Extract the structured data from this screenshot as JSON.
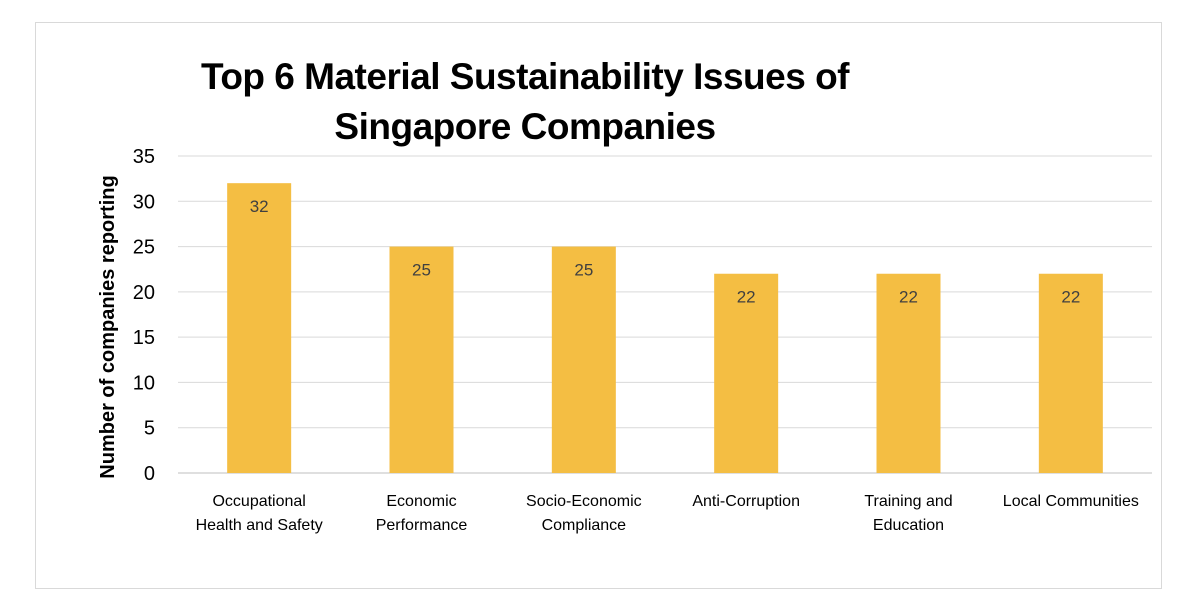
{
  "chart_data": {
    "type": "bar",
    "title_lines": [
      "Top 6 Material Sustainability Issues of",
      "Singapore Companies"
    ],
    "ylabel": "Number of companies reporting",
    "xlabel": "",
    "ylim": [
      0,
      35
    ],
    "yticks": [
      0,
      5,
      10,
      15,
      20,
      25,
      30,
      35
    ],
    "grid": true,
    "legend": "none",
    "bar_color": "#F4BE43",
    "categories": [
      [
        "Occupational",
        "Health and Safety"
      ],
      [
        "Economic",
        "Performance"
      ],
      [
        "Socio-Economic",
        "Compliance"
      ],
      [
        "Anti-Corruption"
      ],
      [
        "Training and",
        "Education"
      ],
      [
        "Local Communities"
      ]
    ],
    "values": [
      32,
      25,
      25,
      22,
      22,
      22
    ]
  }
}
